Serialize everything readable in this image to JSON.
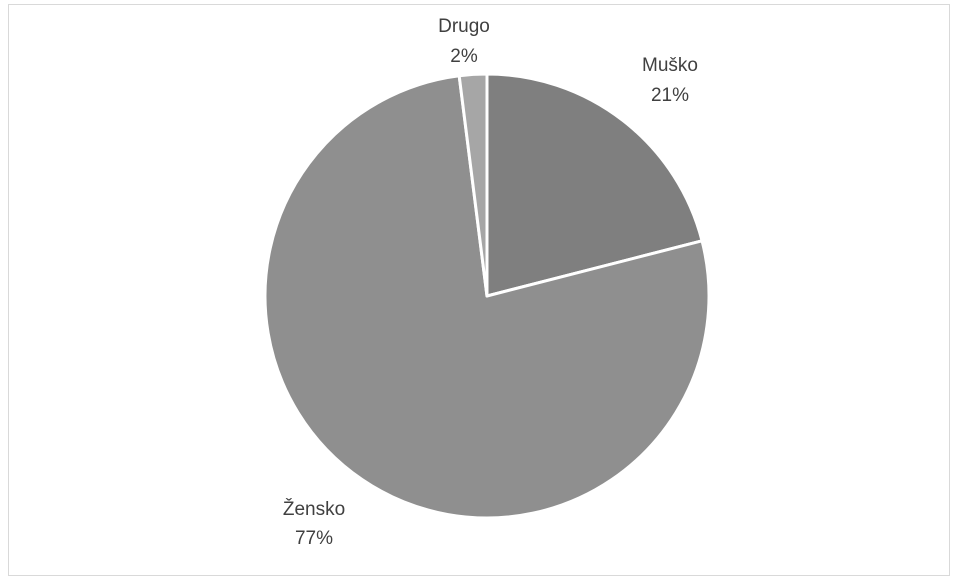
{
  "chart_data": {
    "type": "pie",
    "title": "",
    "categories": [
      "Muško",
      "Žensko",
      "Drugo"
    ],
    "values": [
      21,
      77,
      2
    ],
    "value_labels": [
      "21%",
      "77%",
      "2%"
    ],
    "start_angle_deg": 0,
    "direction": "clockwise",
    "colors": [
      "#7f7f7f",
      "#8f8f8f",
      "#a6a6a6"
    ],
    "slice_border_color": "#ffffff",
    "legend": "none"
  }
}
